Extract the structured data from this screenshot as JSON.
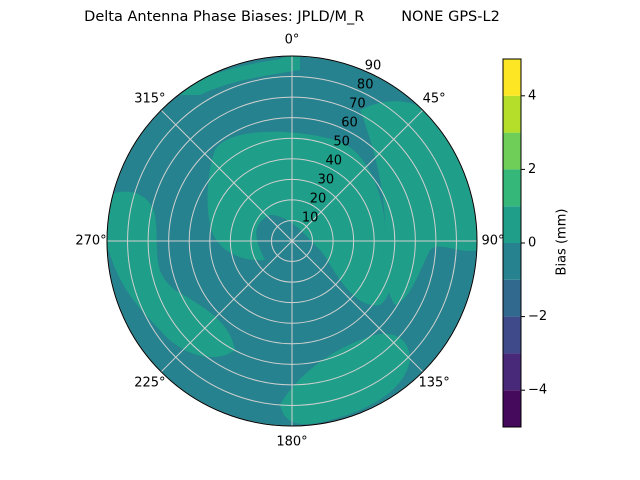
{
  "chart_data": {
    "type": "polar_contour",
    "title": "Delta Antenna Phase Biases: JPLD/M_R        NONE GPS-L2",
    "rlim": [
      0,
      90
    ],
    "rticks": [
      10,
      20,
      30,
      40,
      50,
      60,
      70,
      80,
      90
    ],
    "theta_ticks": [
      {
        "value": 0,
        "label": "0°"
      },
      {
        "value": 45,
        "label": "45°"
      },
      {
        "value": 90,
        "label": "90°"
      },
      {
        "value": 135,
        "label": "135°"
      },
      {
        "value": 180,
        "label": "180°"
      },
      {
        "value": 225,
        "label": "225°"
      },
      {
        "value": 270,
        "label": "270°"
      },
      {
        "value": 315,
        "label": "315°"
      }
    ],
    "grid": true,
    "colorbar": {
      "label": "Bias (mm)",
      "lim": [
        -5,
        5
      ],
      "levels": [
        -5,
        -4,
        -3,
        -2,
        -1,
        0,
        1,
        2,
        3,
        4,
        5
      ],
      "colors": [
        "#450a5c",
        "#482979",
        "#3e4a89",
        "#31688e",
        "#26828e",
        "#1f9e89",
        "#35b779",
        "#6ece58",
        "#b5de2b",
        "#fde725"
      ],
      "ticks": [
        {
          "value": -4,
          "label": "−4"
        },
        {
          "value": -2,
          "label": "−2"
        },
        0,
        2,
        4
      ]
    }
  }
}
